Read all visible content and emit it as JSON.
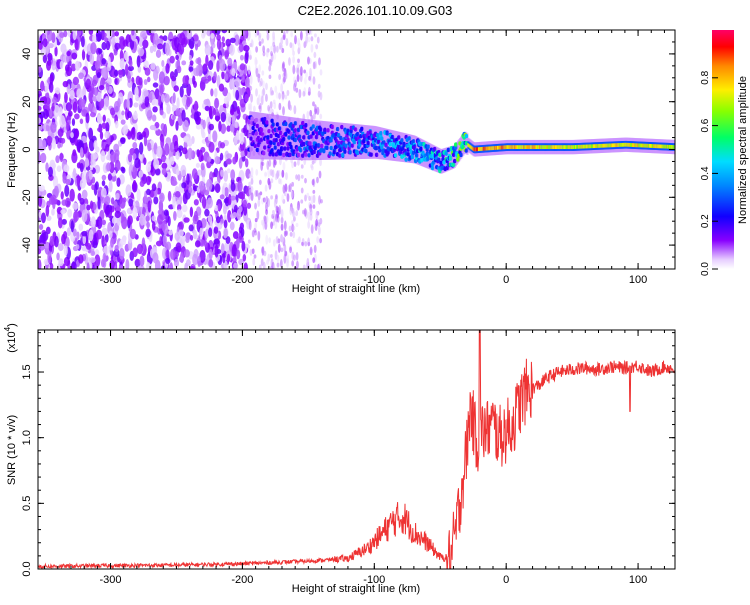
{
  "title": "C2E2.2026.101.10.09.G03",
  "colors": {
    "snr_line": "#ee3333",
    "axis": "#000000",
    "background": "#ffffff"
  },
  "chart_data": [
    {
      "type": "heatmap",
      "name": "spectrogram",
      "xlabel": "Height of straight line (km)",
      "ylabel": "Frequency (Hz)",
      "xlim": [
        -355,
        128
      ],
      "ylim": [
        -50,
        50
      ],
      "x_ticks": [
        -300,
        -200,
        -100,
        0,
        100
      ],
      "x_tick_labels": [
        "-300",
        "-200",
        "-100",
        "0",
        "100"
      ],
      "y_ticks": [
        -40,
        -20,
        0,
        20,
        40
      ],
      "y_tick_labels": [
        "-40",
        "-20",
        "0",
        "20",
        "40"
      ],
      "colorbar": {
        "label": "Normalized spectral amplitude",
        "range": [
          0,
          1
        ],
        "ticks": [
          0.0,
          0.2,
          0.4,
          0.6,
          0.8
        ],
        "tick_labels": [
          "0.0",
          "0.2",
          "0.4",
          "0.6",
          "0.8"
        ],
        "colormap": [
          "#ffffff",
          "#8800ff",
          "#0000ff",
          "#00ccff",
          "#00ff66",
          "#ffff00",
          "#ff0000",
          "#ff0066"
        ]
      },
      "description_points": {
        "noise_region_x": [
          -355,
          -195
        ],
        "faded_noise_x": [
          -195,
          -140
        ],
        "signal_track": {
          "x": [
            -195,
            -150,
            -100,
            -70,
            -50,
            -40,
            -32,
            -25,
            0,
            50,
            90,
            128
          ],
          "freq": [
            6,
            4,
            3,
            0,
            -5,
            -3,
            3,
            0,
            1,
            1,
            2,
            1
          ],
          "amplitude": [
            0.2,
            0.3,
            0.35,
            0.45,
            0.45,
            0.55,
            0.6,
            0.85,
            0.8,
            0.7,
            0.75,
            0.7
          ]
        }
      }
    },
    {
      "type": "line",
      "name": "snr",
      "xlabel": "Height of straight line (km)",
      "ylabel": "SNR (10 * v/v)",
      "multiplier_label": "(x10",
      "multiplier_exp": "4",
      "multiplier_close": ")",
      "xlim": [
        -355,
        128
      ],
      "ylim": [
        0,
        1.82
      ],
      "x_ticks": [
        -300,
        -200,
        -100,
        0,
        100
      ],
      "x_tick_labels": [
        "-300",
        "-200",
        "-100",
        "0",
        "100"
      ],
      "y_ticks": [
        0.0,
        0.5,
        1.0,
        1.5
      ],
      "y_tick_labels": [
        "0.0",
        "0.5",
        "1.0",
        "1.5"
      ],
      "series": [
        {
          "name": "SNR",
          "x": [
            -355,
            -250,
            -200,
            -150,
            -120,
            -105,
            -95,
            -85,
            -78,
            -70,
            -60,
            -50,
            -42,
            -38,
            -34,
            -30,
            -27,
            -24,
            -21,
            -18,
            -15,
            -10,
            -5,
            0,
            5,
            10,
            15,
            20,
            25,
            30,
            40,
            50,
            60,
            70,
            80,
            90,
            100,
            110,
            120,
            128
          ],
          "y": [
            0.02,
            0.03,
            0.04,
            0.06,
            0.08,
            0.16,
            0.26,
            0.37,
            0.4,
            0.28,
            0.2,
            0.09,
            0.08,
            0.3,
            0.6,
            0.9,
            1.25,
            1.05,
            0.95,
            1.05,
            1.05,
            1.1,
            1.0,
            1.05,
            1.1,
            1.25,
            1.35,
            1.38,
            1.4,
            1.45,
            1.5,
            1.52,
            1.53,
            1.52,
            1.54,
            1.53,
            1.55,
            1.5,
            1.54,
            1.52
          ]
        }
      ]
    }
  ]
}
